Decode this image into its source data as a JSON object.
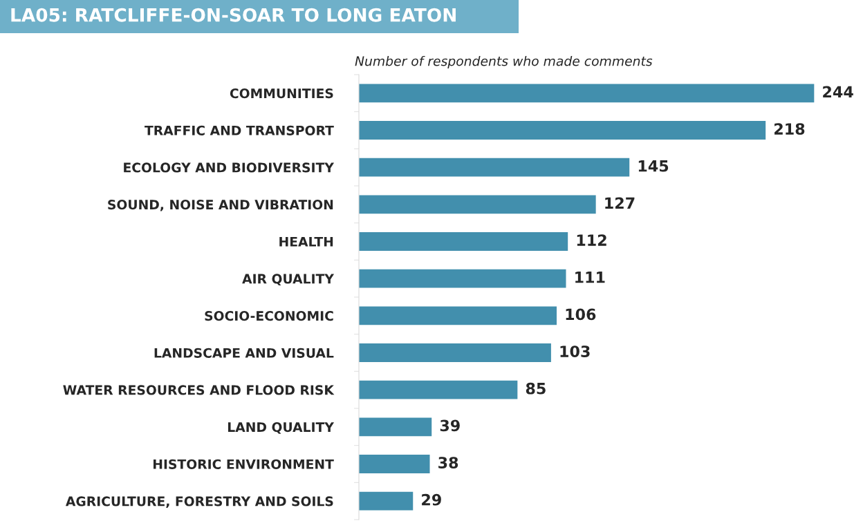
{
  "chart_data": {
    "type": "bar",
    "orientation": "horizontal",
    "title": "LA05: RATCLIFFE-ON-SOAR TO LONG EATON",
    "subtitle": "Number of respondents who made comments",
    "categories": [
      "COMMUNITIES",
      "TRAFFIC AND TRANSPORT",
      "ECOLOGY AND BIODIVERSITY",
      "SOUND, NOISE AND VIBRATION",
      "HEALTH",
      "AIR QUALITY",
      "SOCIO-ECONOMIC",
      "LANDSCAPE AND VISUAL",
      "WATER RESOURCES AND FLOOD RISK",
      "LAND QUALITY",
      "HISTORIC ENVIRONMENT",
      "AGRICULTURE, FORESTRY AND SOILS"
    ],
    "values": [
      244,
      218,
      145,
      127,
      112,
      111,
      106,
      103,
      85,
      39,
      38,
      29
    ],
    "color": "#428fad",
    "data_labels": true,
    "grid": false,
    "legend": false,
    "tick_labels": "y"
  }
}
